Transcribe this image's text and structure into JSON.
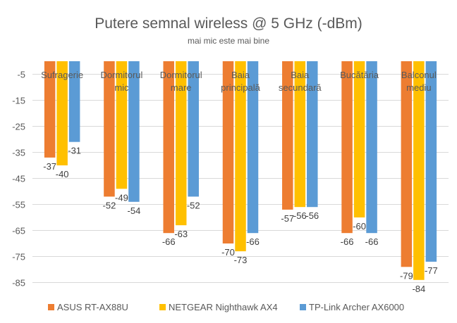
{
  "chart_data": {
    "type": "bar",
    "title": "Putere semnal wireless @ 5 GHz (-dBm)",
    "subtitle": "mai mic este mai bine",
    "categories": [
      [
        "Sufragerie"
      ],
      [
        "Dormitorul",
        "mic"
      ],
      [
        "Dormitorul",
        "mare"
      ],
      [
        "Baia",
        "principală"
      ],
      [
        "Baia",
        "secundară"
      ],
      [
        "Bucătăria"
      ],
      [
        "Balconul",
        "mediu"
      ]
    ],
    "series": [
      {
        "name": "ASUS RT-AX88U",
        "color": "#ED7D31",
        "values": [
          -37,
          -52,
          -66,
          -70,
          -57,
          -66,
          -79
        ]
      },
      {
        "name": "NETGEAR Nighthawk AX4",
        "color": "#FFC000",
        "values": [
          -40,
          -49,
          -63,
          -73,
          -56,
          -60,
          -84
        ]
      },
      {
        "name": "TP-Link Archer AX6000",
        "color": "#5B9BD5",
        "values": [
          -31,
          -54,
          -52,
          -66,
          -56,
          -66,
          -77
        ]
      }
    ],
    "yticks": [
      -5,
      -15,
      -25,
      -35,
      -45,
      -55,
      -65,
      -75,
      -85
    ],
    "ylim": [
      0,
      -90
    ],
    "grid": true,
    "legend_position": "bottom"
  }
}
